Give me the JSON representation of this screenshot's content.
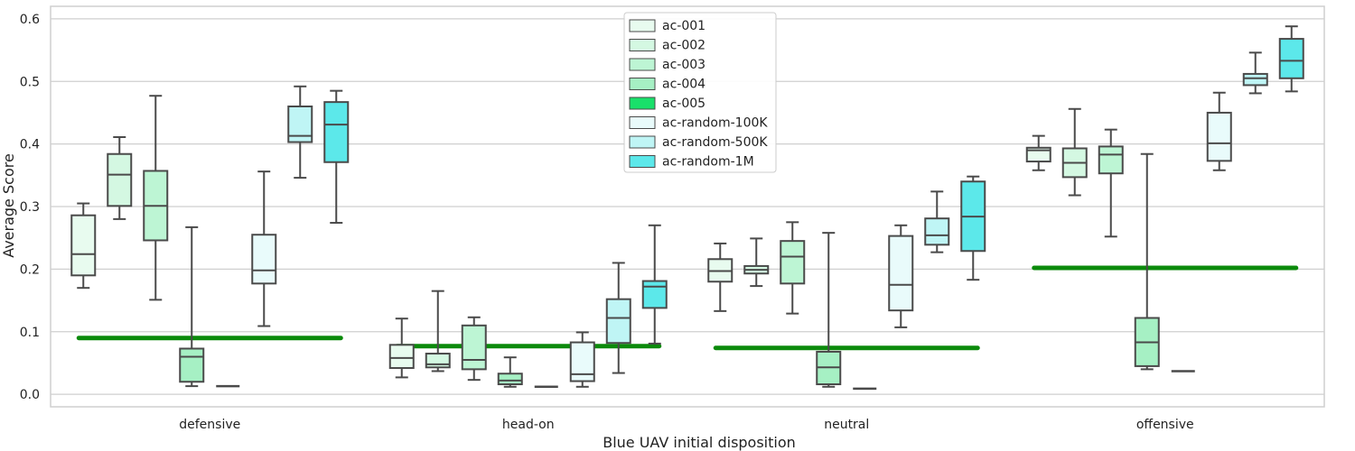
{
  "chart_data": {
    "type": "box",
    "title": "",
    "xlabel": "Blue UAV initial disposition",
    "ylabel": "Average Score",
    "ylim": [
      -0.02,
      0.62
    ],
    "yticks": [
      0.0,
      0.1,
      0.2,
      0.3,
      0.4,
      0.5,
      0.6
    ],
    "ytick_labels": [
      "0.0",
      "0.1",
      "0.2",
      "0.3",
      "0.4",
      "0.5",
      "0.6"
    ],
    "grid": "horizontal",
    "legend_position": "top-center",
    "categories": [
      "defensive",
      "head-on",
      "neutral",
      "offensive"
    ],
    "series": [
      {
        "name": "ac-001",
        "color": "#e8fbef",
        "boxes": [
          {
            "min": 0.17,
            "q1": 0.19,
            "median": 0.224,
            "q3": 0.286,
            "max": 0.305
          },
          {
            "min": 0.027,
            "q1": 0.042,
            "median": 0.058,
            "q3": 0.079,
            "max": 0.121
          },
          {
            "min": 0.133,
            "q1": 0.18,
            "median": 0.197,
            "q3": 0.216,
            "max": 0.241
          },
          {
            "min": 0.358,
            "q1": 0.372,
            "median": 0.39,
            "q3": 0.394,
            "max": 0.413
          }
        ]
      },
      {
        "name": "ac-002",
        "color": "#d4f8e2",
        "boxes": [
          {
            "min": 0.28,
            "q1": 0.301,
            "median": 0.351,
            "q3": 0.384,
            "max": 0.411
          },
          {
            "min": 0.037,
            "q1": 0.043,
            "median": 0.048,
            "q3": 0.065,
            "max": 0.165
          },
          {
            "min": 0.173,
            "q1": 0.193,
            "median": 0.199,
            "q3": 0.205,
            "max": 0.249
          },
          {
            "min": 0.318,
            "q1": 0.347,
            "median": 0.37,
            "q3": 0.393,
            "max": 0.456
          }
        ]
      },
      {
        "name": "ac-003",
        "color": "#bdf5d4",
        "boxes": [
          {
            "min": 0.151,
            "q1": 0.246,
            "median": 0.301,
            "q3": 0.357,
            "max": 0.477
          },
          {
            "min": 0.023,
            "q1": 0.04,
            "median": 0.055,
            "q3": 0.11,
            "max": 0.123
          },
          {
            "min": 0.129,
            "q1": 0.177,
            "median": 0.22,
            "q3": 0.245,
            "max": 0.275
          },
          {
            "min": 0.252,
            "q1": 0.353,
            "median": 0.383,
            "q3": 0.396,
            "max": 0.423
          }
        ]
      },
      {
        "name": "ac-004",
        "color": "#a6f0c4",
        "boxes": [
          {
            "min": 0.013,
            "q1": 0.02,
            "median": 0.06,
            "q3": 0.073,
            "max": 0.267
          },
          {
            "min": 0.012,
            "q1": 0.016,
            "median": 0.022,
            "q3": 0.033,
            "max": 0.059
          },
          {
            "min": 0.012,
            "q1": 0.016,
            "median": 0.043,
            "q3": 0.068,
            "max": 0.258
          },
          {
            "min": 0.04,
            "q1": 0.045,
            "median": 0.083,
            "q3": 0.122,
            "max": 0.384
          }
        ]
      },
      {
        "name": "ac-005",
        "color": "#19e06a",
        "reference_lines": [
          0.09,
          0.077,
          0.074,
          0.202
        ]
      },
      {
        "name": "ac-random-100K",
        "color": "#e9fbfb",
        "boxes": [
          {
            "min": 0.109,
            "q1": 0.177,
            "median": 0.198,
            "q3": 0.255,
            "max": 0.356
          },
          {
            "min": 0.012,
            "q1": 0.021,
            "median": 0.032,
            "q3": 0.083,
            "max": 0.099
          },
          {
            "min": 0.107,
            "q1": 0.134,
            "median": 0.175,
            "q3": 0.253,
            "max": 0.27
          },
          {
            "min": 0.358,
            "q1": 0.373,
            "median": 0.401,
            "q3": 0.45,
            "max": 0.482
          }
        ]
      },
      {
        "name": "ac-random-500K",
        "color": "#bff5f5",
        "boxes": [
          {
            "min": 0.346,
            "q1": 0.403,
            "median": 0.413,
            "q3": 0.46,
            "max": 0.492
          },
          {
            "min": 0.034,
            "q1": 0.082,
            "median": 0.122,
            "q3": 0.152,
            "max": 0.21
          },
          {
            "min": 0.227,
            "q1": 0.239,
            "median": 0.254,
            "q3": 0.281,
            "max": 0.324
          },
          {
            "min": 0.481,
            "q1": 0.494,
            "median": 0.505,
            "q3": 0.512,
            "max": 0.546
          }
        ]
      },
      {
        "name": "ac-random-1M",
        "color": "#5ce8ea",
        "boxes": [
          {
            "min": 0.274,
            "q1": 0.371,
            "median": 0.431,
            "q3": 0.467,
            "max": 0.485
          },
          {
            "min": 0.081,
            "q1": 0.138,
            "median": 0.172,
            "q3": 0.181,
            "max": 0.27
          },
          {
            "min": 0.183,
            "q1": 0.229,
            "median": 0.284,
            "q3": 0.34,
            "max": 0.348
          },
          {
            "min": 0.484,
            "q1": 0.505,
            "median": 0.533,
            "q3": 0.568,
            "max": 0.588
          }
        ]
      }
    ],
    "collapsed_boxes": {
      "series": "ac-004",
      "note": "",
      "values": []
    },
    "flat_marks": [
      {
        "category": "defensive",
        "value": 0.013
      },
      {
        "category": "head-on",
        "value": 0.012
      },
      {
        "category": "neutral",
        "value": 0.009
      },
      {
        "category": "offensive",
        "value": 0.037
      }
    ],
    "colors": {
      "reference_line": "#0b8a0b",
      "box_edge": "#4a4a4a",
      "grid": "#cfcfcf",
      "frame": "#cfcfcf"
    }
  }
}
